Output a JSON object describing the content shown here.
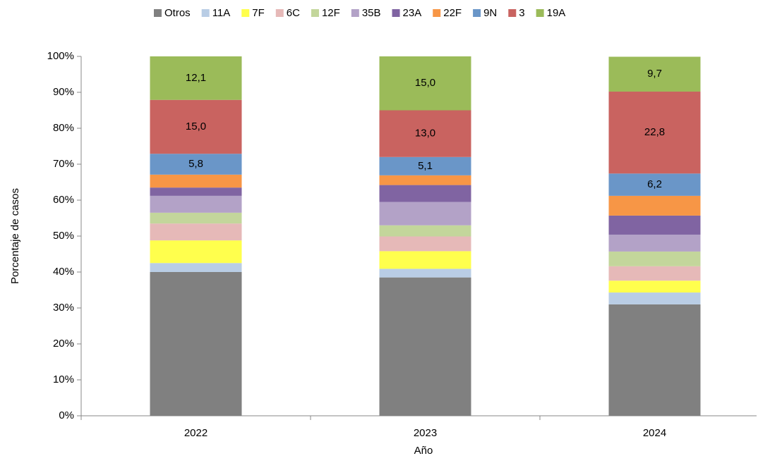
{
  "chart_data": {
    "type": "stacked_bar",
    "ylabel": "Porcentaje de casos",
    "xlabel": "Año",
    "categories": [
      "2022",
      "2023",
      "2024"
    ],
    "series": [
      {
        "name": "Otros",
        "color": "#808080",
        "values": [
          40.0,
          38.5,
          31.0
        ]
      },
      {
        "name": "11A",
        "color": "#b9cde5",
        "values": [
          2.5,
          2.4,
          3.3
        ]
      },
      {
        "name": "7F",
        "color": "#ffff4d",
        "values": [
          6.3,
          4.9,
          3.3
        ]
      },
      {
        "name": "6C",
        "color": "#e6b9b8",
        "values": [
          4.7,
          4.1,
          4.0
        ]
      },
      {
        "name": "12F",
        "color": "#c3d69b",
        "values": [
          3.0,
          3.1,
          4.1
        ]
      },
      {
        "name": "35B",
        "color": "#b3a2c7",
        "values": [
          4.7,
          6.5,
          4.7
        ]
      },
      {
        "name": "23A",
        "color": "#8064a2",
        "values": [
          2.3,
          4.7,
          5.3
        ]
      },
      {
        "name": "22F",
        "color": "#f79646",
        "values": [
          3.6,
          2.7,
          5.5
        ]
      },
      {
        "name": "9N",
        "color": "#6a96c8",
        "values": [
          5.8,
          5.1,
          6.2
        ],
        "value_labels": [
          "5,8",
          "5,1",
          "6,2"
        ]
      },
      {
        "name": "3",
        "color": "#c96360",
        "values": [
          15.0,
          13.0,
          22.8
        ],
        "value_labels": [
          "15,0",
          "13,0",
          "22,8"
        ]
      },
      {
        "name": "19A",
        "color": "#9bbb59",
        "values": [
          12.1,
          15.0,
          9.7
        ],
        "value_labels": [
          "12,1",
          "15,0",
          "9,7"
        ]
      }
    ],
    "ylim": [
      0,
      100
    ],
    "yticks": [
      {
        "value": 0,
        "label": "0%"
      },
      {
        "value": 10,
        "label": "10%"
      },
      {
        "value": 20,
        "label": "20%"
      },
      {
        "value": 30,
        "label": "30%"
      },
      {
        "value": 40,
        "label": "40%"
      },
      {
        "value": 50,
        "label": "50%"
      },
      {
        "value": 60,
        "label": "60%"
      },
      {
        "value": 70,
        "label": "70%"
      },
      {
        "value": 80,
        "label": "80%"
      },
      {
        "value": 90,
        "label": "90%"
      },
      {
        "value": 100,
        "label": "100%"
      }
    ],
    "legend": "top"
  }
}
